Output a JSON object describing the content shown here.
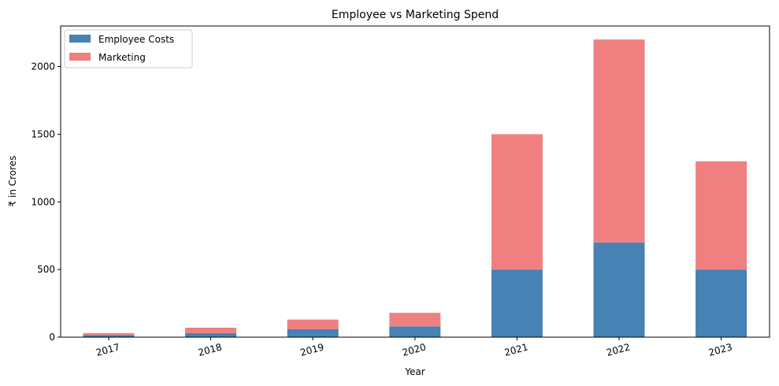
{
  "chart_data": {
    "type": "bar",
    "stacked": true,
    "title": "Employee vs Marketing Spend",
    "xlabel": "Year",
    "ylabel": "₹ in Crores",
    "categories": [
      "2017",
      "2018",
      "2019",
      "2020",
      "2021",
      "2022",
      "2023"
    ],
    "series": [
      {
        "name": "Employee Costs",
        "color": "#4682b4",
        "values": [
          15,
          30,
          60,
          80,
          500,
          700,
          500
        ]
      },
      {
        "name": "Marketing",
        "color": "#f08080",
        "values": [
          15,
          40,
          70,
          100,
          1000,
          1500,
          800
        ]
      }
    ],
    "ylim": [
      0,
      2300
    ],
    "yticks": [
      0,
      500,
      1000,
      1500,
      2000
    ],
    "grid": false,
    "legend_position": "top-left"
  }
}
